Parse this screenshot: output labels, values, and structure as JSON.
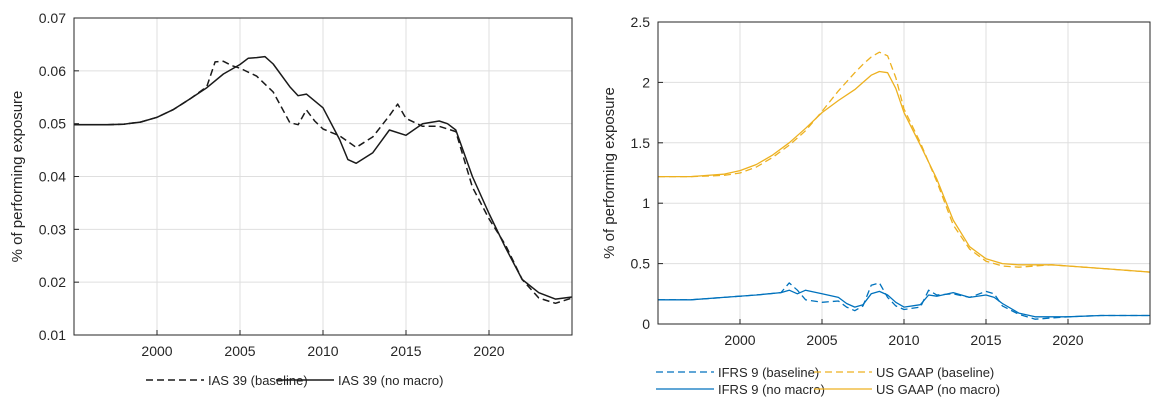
{
  "colors": {
    "black": "#1a1a1a",
    "blue": "#0072BD",
    "gold": "#EDB120",
    "grid": "#dfdfdf"
  },
  "chart_data": [
    {
      "type": "line",
      "title": "",
      "xlabel": "",
      "ylabel": "% of performing exposure",
      "xlim": [
        1995,
        2025
      ],
      "ylim": [
        0.01,
        0.07
      ],
      "xticks": [
        2000,
        2005,
        2010,
        2015,
        2020
      ],
      "xtick_labels": [
        "2000",
        "2005",
        "2010",
        "2015",
        "2020"
      ],
      "yticks": [
        0.01,
        0.02,
        0.03,
        0.04,
        0.05,
        0.06,
        0.07
      ],
      "ytick_labels": [
        "0.01",
        "0.02",
        "0.03",
        "0.04",
        "0.05",
        "0.06",
        "0.07"
      ],
      "grid": true,
      "legend": "bottom",
      "series": [
        {
          "name": "IAS 39 (baseline)",
          "color": "#1a1a1a",
          "dash": "dashed",
          "x": [
            1995,
            1997,
            1998,
            1999,
            2000,
            2001,
            2002,
            2003,
            2003.5,
            2004,
            2004.5,
            2005,
            2006,
            2007,
            2008,
            2008.5,
            2009,
            2009.5,
            2010,
            2011,
            2012,
            2013,
            2014,
            2014.5,
            2015,
            2016,
            2017,
            2018,
            2019,
            2020,
            2021,
            2022,
            2023,
            2024,
            2025
          ],
          "y": [
            0.0498,
            0.0498,
            0.0499,
            0.0503,
            0.0512,
            0.0527,
            0.0547,
            0.057,
            0.0617,
            0.0618,
            0.061,
            0.0605,
            0.059,
            0.056,
            0.0502,
            0.0498,
            0.0526,
            0.0505,
            0.049,
            0.0477,
            0.0455,
            0.0475,
            0.0515,
            0.0537,
            0.051,
            0.0495,
            0.0495,
            0.0485,
            0.038,
            0.032,
            0.027,
            0.0205,
            0.017,
            0.016,
            0.017
          ]
        },
        {
          "name": "IAS 39 (no macro)",
          "color": "#1a1a1a",
          "dash": "solid",
          "x": [
            1995,
            1997,
            1998,
            1999,
            2000,
            2001,
            2002,
            2003,
            2004,
            2005,
            2005.5,
            2006,
            2006.5,
            2007,
            2008,
            2008.5,
            2009,
            2010,
            2011,
            2011.5,
            2012,
            2013,
            2014,
            2015,
            2016,
            2017,
            2017.5,
            2018,
            2019,
            2020,
            2021,
            2022,
            2023,
            2024,
            2025
          ],
          "y": [
            0.0498,
            0.0498,
            0.0499,
            0.0503,
            0.0512,
            0.0527,
            0.0547,
            0.0568,
            0.0594,
            0.0612,
            0.0624,
            0.0625,
            0.0627,
            0.0613,
            0.057,
            0.0553,
            0.0556,
            0.053,
            0.047,
            0.0432,
            0.0425,
            0.0445,
            0.0488,
            0.0478,
            0.05,
            0.0505,
            0.05,
            0.0488,
            0.04,
            0.033,
            0.0265,
            0.0205,
            0.018,
            0.0168,
            0.0172
          ]
        }
      ]
    },
    {
      "type": "line",
      "title": "",
      "xlabel": "",
      "ylabel": "% of performing exposure",
      "xlim": [
        1995,
        2025
      ],
      "ylim": [
        0,
        2.5
      ],
      "xticks": [
        2000,
        2005,
        2010,
        2015,
        2020
      ],
      "xtick_labels": [
        "2000",
        "2005",
        "2010",
        "2015",
        "2020"
      ],
      "yticks": [
        0,
        0.5,
        1,
        1.5,
        2,
        2.5
      ],
      "ytick_labels": [
        "0",
        "0.5",
        "1",
        "1.5",
        "2",
        "2.5"
      ],
      "grid": true,
      "legend": "bottom",
      "series": [
        {
          "name": "IFRS 9 (baseline)",
          "color": "#0072BD",
          "dash": "dashed",
          "x": [
            1995,
            1997,
            1999,
            2001,
            2002.5,
            2003,
            2003.5,
            2004,
            2005,
            2006,
            2006.5,
            2007,
            2007.5,
            2008,
            2008.5,
            2009,
            2009.5,
            2010,
            2011,
            2011.5,
            2012,
            2013,
            2014,
            2015,
            2015.5,
            2016,
            2017,
            2018,
            2020,
            2022,
            2025
          ],
          "y": [
            0.2,
            0.2,
            0.22,
            0.24,
            0.26,
            0.34,
            0.28,
            0.2,
            0.18,
            0.19,
            0.14,
            0.11,
            0.15,
            0.32,
            0.34,
            0.22,
            0.15,
            0.12,
            0.14,
            0.28,
            0.24,
            0.25,
            0.22,
            0.27,
            0.25,
            0.15,
            0.08,
            0.04,
            0.06,
            0.07,
            0.07
          ]
        },
        {
          "name": "IFRS 9 (no macro)",
          "color": "#0072BD",
          "dash": "solid",
          "x": [
            1995,
            1997,
            1999,
            2001,
            2002.5,
            2003,
            2003.5,
            2004,
            2005,
            2006,
            2006.5,
            2007,
            2007.5,
            2008,
            2008.5,
            2009,
            2009.5,
            2010,
            2011,
            2011.5,
            2012,
            2013,
            2014,
            2015,
            2015.5,
            2016,
            2017,
            2018,
            2020,
            2022,
            2025
          ],
          "y": [
            0.2,
            0.2,
            0.22,
            0.24,
            0.26,
            0.28,
            0.25,
            0.28,
            0.25,
            0.22,
            0.17,
            0.14,
            0.16,
            0.25,
            0.27,
            0.24,
            0.18,
            0.14,
            0.16,
            0.24,
            0.23,
            0.26,
            0.22,
            0.24,
            0.22,
            0.17,
            0.09,
            0.06,
            0.06,
            0.07,
            0.07
          ]
        },
        {
          "name": "US GAAP (baseline)",
          "color": "#EDB120",
          "dash": "dashed",
          "x": [
            1995,
            1997,
            1999,
            2000,
            2001,
            2002,
            2003,
            2004,
            2005,
            2006,
            2007,
            2007.5,
            2008,
            2008.5,
            2009,
            2009.5,
            2010,
            2011,
            2012,
            2013,
            2014,
            2015,
            2016,
            2017,
            2018,
            2019,
            2020,
            2022,
            2025
          ],
          "y": [
            1.22,
            1.22,
            1.23,
            1.25,
            1.3,
            1.38,
            1.48,
            1.6,
            1.76,
            1.93,
            2.08,
            2.15,
            2.21,
            2.25,
            2.22,
            2.04,
            1.78,
            1.5,
            1.18,
            0.82,
            0.62,
            0.52,
            0.48,
            0.47,
            0.48,
            0.49,
            0.48,
            0.46,
            0.43
          ]
        },
        {
          "name": "US GAAP (no macro)",
          "color": "#EDB120",
          "dash": "solid",
          "x": [
            1995,
            1997,
            1999,
            2000,
            2001,
            2002,
            2003,
            2004,
            2005,
            2006,
            2007,
            2007.5,
            2008,
            2008.5,
            2009,
            2009.5,
            2010,
            2011,
            2012,
            2013,
            2014,
            2015,
            2016,
            2017,
            2018,
            2019,
            2020,
            2022,
            2025
          ],
          "y": [
            1.22,
            1.22,
            1.24,
            1.27,
            1.32,
            1.4,
            1.5,
            1.62,
            1.75,
            1.85,
            1.94,
            2.0,
            2.06,
            2.09,
            2.08,
            1.95,
            1.75,
            1.48,
            1.2,
            0.86,
            0.64,
            0.54,
            0.5,
            0.49,
            0.49,
            0.49,
            0.48,
            0.46,
            0.43
          ]
        }
      ]
    }
  ]
}
